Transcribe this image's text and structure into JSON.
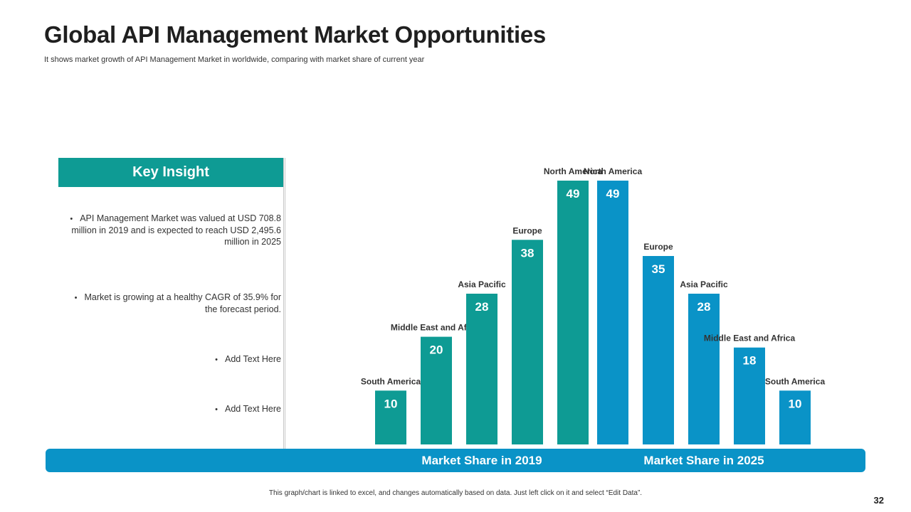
{
  "header": {
    "title": "Global API Management Market Opportunities",
    "subtitle": "It shows market growth of API Management Market in worldwide, comparing with market share of current year"
  },
  "insight": {
    "heading": "Key Insight",
    "bullets": [
      "API Management Market was valued at USD 708.8 million in 2019 and is expected to reach USD 2,495.6 million in 2025",
      "Market is growing at a healthy CAGR of 35.9%  for the forecast period.",
      "Add Text Here",
      "Add Text Here"
    ]
  },
  "chart_data": {
    "type": "bar",
    "groups": [
      {
        "name": "Market Share in 2019",
        "color": "#0e9b94",
        "categories": [
          "South America",
          "Middle East and Africa",
          "Asia Pacific",
          "Europe",
          "North America"
        ],
        "values": [
          10,
          20,
          28,
          38,
          49
        ]
      },
      {
        "name": "Market Share in 2025",
        "color": "#0a93c7",
        "categories": [
          "North America",
          "Europe",
          "Asia Pacific",
          "Middle East and Africa",
          "South America"
        ],
        "values": [
          49,
          35,
          28,
          18,
          10
        ]
      }
    ],
    "ylim": [
      0,
      49
    ],
    "grid": false,
    "legend": "none"
  },
  "footer": {
    "note": "This graph/chart is linked to excel, and changes automatically  based on data. Just left click on it and select “Edit Data”.",
    "page_number": "32"
  }
}
